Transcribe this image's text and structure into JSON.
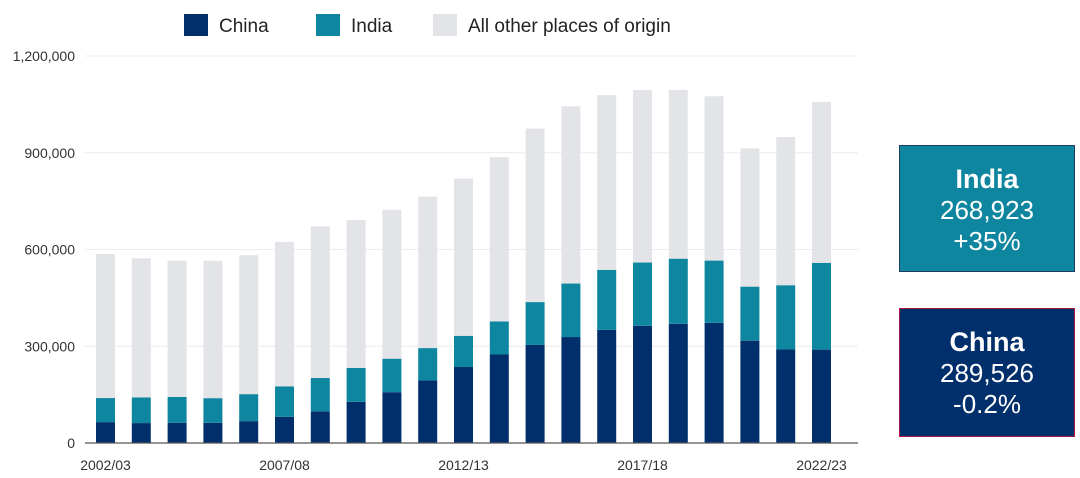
{
  "chart_data": {
    "type": "bar",
    "stacked": true,
    "categories": [
      "2002/03",
      "2003/04",
      "2004/05",
      "2005/06",
      "2006/07",
      "2007/08",
      "2008/09",
      "2009/10",
      "2010/11",
      "2011/12",
      "2012/13",
      "2013/14",
      "2014/15",
      "2015/16",
      "2016/17",
      "2017/18",
      "2018/19",
      "2019/20",
      "2020/21",
      "2021/22",
      "2022/23"
    ],
    "tick_labels": [
      "2002/03",
      "2007/08",
      "2012/13",
      "2017/18",
      "2022/23"
    ],
    "series": [
      {
        "name": "China",
        "color": "#002f6c",
        "values": [
          64757,
          61765,
          62523,
          62582,
          67723,
          81127,
          98235,
          127628,
          157558,
          194029,
          235597,
          274439,
          304040,
          328547,
          350755,
          363341,
          369548,
          372532,
          317299,
          290086,
          289526
        ]
      },
      {
        "name": "India",
        "color": "#0f869f",
        "values": [
          74603,
          79736,
          80466,
          76503,
          83833,
          94563,
          103260,
          104897,
          103895,
          100270,
          96754,
          102673,
          132888,
          165918,
          186267,
          196271,
          202014,
          193124,
          167582,
          199182,
          268923
        ]
      },
      {
        "name": "All other places of origin",
        "color": "#e2e4e8",
        "values": [
          446883,
          431115,
          422080,
          425938,
          430776,
          447879,
          470222,
          458463,
          461830,
          470041,
          487206,
          509004,
          537932,
          549584,
          541777,
          534768,
          523376,
          509687,
          428725,
          459504,
          499268
        ]
      }
    ],
    "ylim": [
      0,
      1200000
    ],
    "yticks": [
      0,
      300000,
      600000,
      900000,
      1200000
    ],
    "ytick_labels": [
      "0",
      "300,000",
      "600,000",
      "900,000",
      "1,200,000"
    ],
    "grid": true,
    "legend": "top"
  },
  "callouts": [
    {
      "name": "India",
      "value": "268,923",
      "change": "+35%",
      "color": "#0f869f"
    },
    {
      "name": "China",
      "value": "289,526",
      "change": "-0.2%",
      "color": "#002f6c"
    }
  ]
}
